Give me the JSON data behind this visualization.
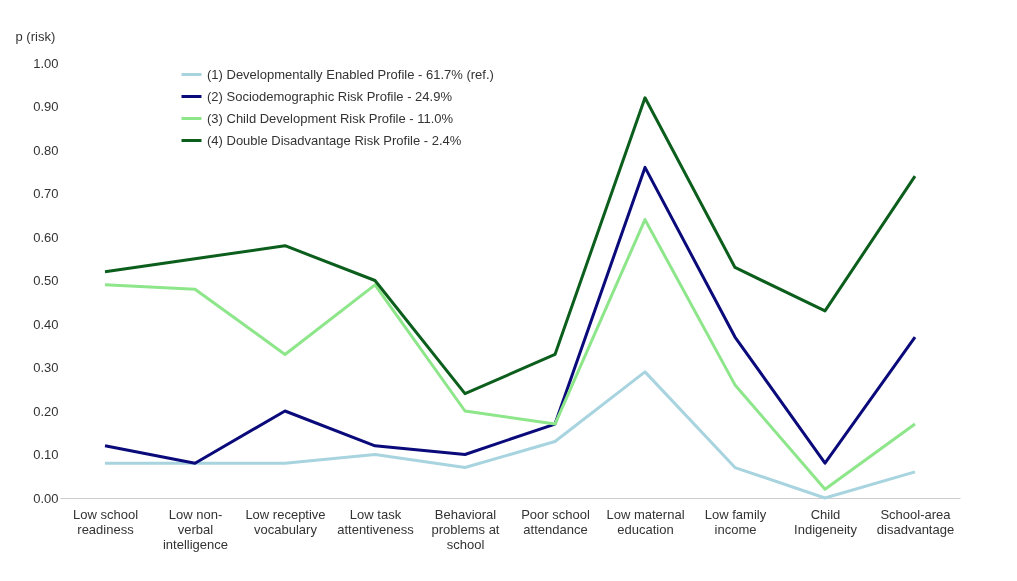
{
  "chart_data": {
    "type": "line",
    "ylabel": "p (risk)",
    "categories": [
      "Low school readiness",
      "Low non-verbal intelligence",
      "Low receptive vocabulary",
      "Low task attentiveness",
      "Behavioral problems at school",
      "Poor school attendance",
      "Low maternal education",
      "Low family income",
      "Child Indigeneity",
      "School-area disadvantage"
    ],
    "series": [
      {
        "name": "(1) Developmentally Enabled Profile - 61.7% (ref.)",
        "color": "#a8d4e0",
        "values": [
          0.08,
          0.08,
          0.08,
          0.1,
          0.07,
          0.13,
          0.29,
          0.07,
          0.0,
          0.06
        ]
      },
      {
        "name": "(2) Sociodemographic Risk Profile - 24.9%",
        "color": "#0a0a7a",
        "values": [
          0.12,
          0.08,
          0.2,
          0.12,
          0.1,
          0.17,
          0.76,
          0.37,
          0.08,
          0.37
        ]
      },
      {
        "name": "(3) Child Development Risk Profile - 11.0%",
        "color": "#8ee68a",
        "values": [
          0.49,
          0.48,
          0.33,
          0.49,
          0.2,
          0.17,
          0.64,
          0.26,
          0.02,
          0.17
        ]
      },
      {
        "name": "(4) Double Disadvantage Risk Profile - 2.4%",
        "color": "#0b5e1c",
        "values": [
          0.52,
          0.55,
          0.58,
          0.5,
          0.24,
          0.33,
          0.92,
          0.53,
          0.43,
          0.74
        ]
      }
    ],
    "ylim": [
      0,
      1.0
    ],
    "yticks": [
      {
        "value": 0,
        "label": "0.00"
      },
      {
        "value": 0.1,
        "label": "0.10"
      },
      {
        "value": 0.2,
        "label": "0.20"
      },
      {
        "value": 0.3,
        "label": "0.30"
      },
      {
        "value": 0.4,
        "label": "0.40"
      },
      {
        "value": 0.5,
        "label": "0.50"
      },
      {
        "value": 0.6,
        "label": "0.60"
      },
      {
        "value": 0.7,
        "label": "0.70"
      },
      {
        "value": 0.8,
        "label": "0.80"
      },
      {
        "value": 0.9,
        "label": "0.90"
      },
      {
        "value": 1.0,
        "label": "1.00"
      }
    ],
    "grid": false,
    "legend": "top left",
    "marker": "none",
    "line_style": "solid"
  }
}
